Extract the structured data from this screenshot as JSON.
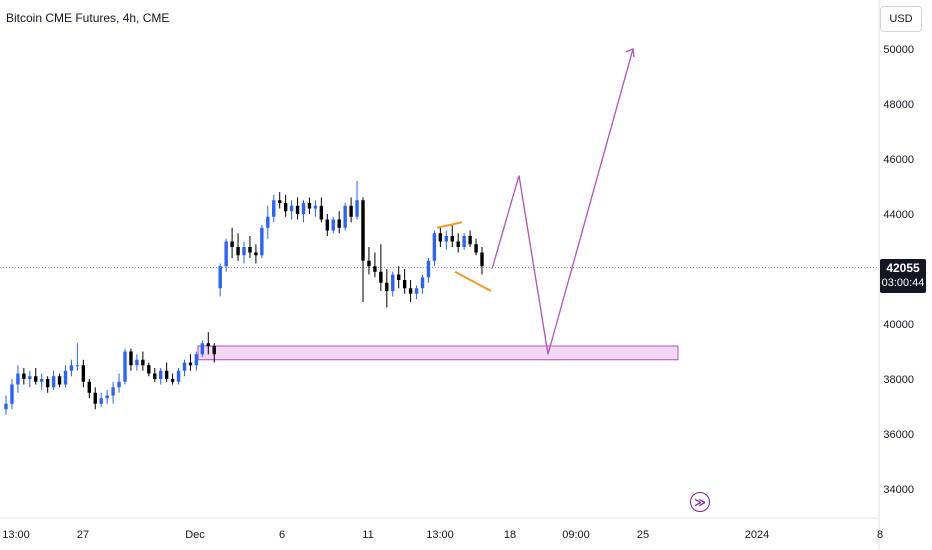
{
  "header": {
    "title": "Bitcoin CME Futures, 4h, CME"
  },
  "price_scale": {
    "currency": "USD"
  },
  "last_price": {
    "price": "42055",
    "countdown": "03:00:44"
  },
  "colors": {
    "up": "#2962ff",
    "down": "#000000",
    "zone_fill": "#f3d8f5",
    "zone_border": "#b44fbf",
    "projection": "#b44fbf",
    "triangle": "#f59a23",
    "nav_icon": "#7b1fa2"
  },
  "chart_data": {
    "type": "candlestick",
    "title": "Bitcoin CME Futures, 4h, CME",
    "ylim": [
      33000,
      51800
    ],
    "y_ticks": [
      "34000",
      "36000",
      "38000",
      "40000",
      "42000",
      "44000",
      "46000",
      "48000",
      "50000"
    ],
    "x_ticks": [
      "13:00",
      "27",
      "Dec",
      "6",
      "11",
      "13:00",
      "18",
      "09:00",
      "25",
      "2024",
      "8"
    ],
    "grid": false,
    "candles": [
      [
        36900,
        37400,
        36700,
        37100
      ],
      [
        37100,
        38000,
        36900,
        37800
      ],
      [
        37800,
        38500,
        37500,
        38200
      ],
      [
        38200,
        38400,
        37800,
        38000
      ],
      [
        38000,
        38300,
        37700,
        38100
      ],
      [
        38100,
        38400,
        37800,
        37900
      ],
      [
        37900,
        38200,
        37600,
        38000
      ],
      [
        38000,
        38100,
        37500,
        37700
      ],
      [
        37700,
        38300,
        37600,
        38100
      ],
      [
        38100,
        38200,
        37700,
        37800
      ],
      [
        37800,
        38500,
        37700,
        38300
      ],
      [
        38300,
        38700,
        38100,
        38500
      ],
      [
        38500,
        39300,
        38300,
        38500
      ],
      [
        38500,
        38700,
        37700,
        37900
      ],
      [
        37900,
        38000,
        37300,
        37500
      ],
      [
        37500,
        37700,
        36900,
        37100
      ],
      [
        37100,
        37500,
        37000,
        37300
      ],
      [
        37300,
        37600,
        37100,
        37400
      ],
      [
        37400,
        37900,
        37100,
        37700
      ],
      [
        37700,
        38200,
        37500,
        37900
      ],
      [
        37900,
        39100,
        37800,
        39000
      ],
      [
        39000,
        39100,
        38300,
        38500
      ],
      [
        38500,
        38900,
        38300,
        38700
      ],
      [
        38700,
        39000,
        38300,
        38500
      ],
      [
        38500,
        38600,
        38100,
        38200
      ],
      [
        38200,
        38400,
        37900,
        38000
      ],
      [
        38000,
        38400,
        37800,
        38300
      ],
      [
        38300,
        38600,
        37900,
        38000
      ],
      [
        38000,
        38200,
        37800,
        37900
      ],
      [
        37900,
        38400,
        37800,
        38300
      ],
      [
        38300,
        38700,
        38100,
        38600
      ],
      [
        38600,
        38900,
        38300,
        38500
      ],
      [
        38500,
        39000,
        38300,
        38900
      ],
      [
        38900,
        39400,
        38800,
        39300
      ],
      [
        39300,
        39700,
        38900,
        39200
      ],
      [
        39200,
        39300,
        38600,
        38900
      ],
      [
        41300,
        42200,
        41000,
        42100
      ],
      [
        42100,
        43100,
        41900,
        43000
      ],
      [
        43000,
        43500,
        42400,
        42800
      ],
      [
        42800,
        43300,
        42300,
        42500
      ],
      [
        42500,
        43000,
        42200,
        42800
      ],
      [
        42800,
        43200,
        42400,
        42600
      ],
      [
        42600,
        42900,
        42200,
        42500
      ],
      [
        42500,
        43600,
        42400,
        43500
      ],
      [
        43500,
        44300,
        43100,
        43900
      ],
      [
        43900,
        44700,
        43700,
        44500
      ],
      [
        44500,
        44800,
        44200,
        44400
      ],
      [
        44400,
        44700,
        43900,
        44100
      ],
      [
        44100,
        44500,
        43800,
        44300
      ],
      [
        44300,
        44600,
        43800,
        44000
      ],
      [
        44000,
        44500,
        43700,
        44400
      ],
      [
        44400,
        44600,
        44000,
        44200
      ],
      [
        44200,
        44500,
        43900,
        44300
      ],
      [
        44300,
        44600,
        43700,
        43800
      ],
      [
        43800,
        44000,
        43200,
        43400
      ],
      [
        43400,
        43900,
        43300,
        43800
      ],
      [
        43800,
        44100,
        43300,
        43500
      ],
      [
        43500,
        44400,
        43400,
        44300
      ],
      [
        44300,
        44600,
        43700,
        43900
      ],
      [
        43900,
        45200,
        43800,
        44500
      ],
      [
        44500,
        44600,
        40800,
        42300
      ],
      [
        42300,
        42800,
        41800,
        42100
      ],
      [
        42100,
        42600,
        41700,
        41900
      ],
      [
        41900,
        42900,
        41200,
        41500
      ],
      [
        41500,
        42000,
        40600,
        41200
      ],
      [
        41200,
        41900,
        41000,
        41800
      ],
      [
        41800,
        42100,
        41300,
        41600
      ],
      [
        41600,
        42000,
        41100,
        41300
      ],
      [
        41300,
        41600,
        40800,
        41100
      ],
      [
        41100,
        41400,
        40900,
        41300
      ],
      [
        41300,
        41800,
        41100,
        41700
      ],
      [
        41700,
        42400,
        41500,
        42300
      ],
      [
        42300,
        43400,
        42100,
        43300
      ],
      [
        43300,
        43500,
        42800,
        43000
      ],
      [
        43000,
        43400,
        42700,
        43200
      ],
      [
        43200,
        43600,
        42800,
        43000
      ],
      [
        43000,
        43300,
        42600,
        42800
      ],
      [
        42800,
        43300,
        42700,
        43200
      ],
      [
        43200,
        43400,
        42800,
        42900
      ],
      [
        42900,
        43100,
        42500,
        42600
      ],
      [
        42600,
        42800,
        41800,
        42100
      ]
    ],
    "annotations": {
      "demand_zone": {
        "price_low": 38700,
        "price_high": 39200
      },
      "projection_path": [
        42000,
        45400,
        38900,
        50000
      ],
      "triangle": {
        "upper": [
          43500,
          43700
        ],
        "lower": [
          41900,
          41200
        ]
      }
    }
  }
}
